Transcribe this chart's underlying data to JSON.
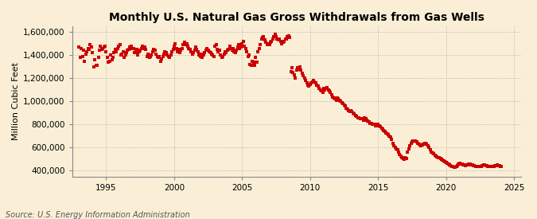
{
  "title": "Monthly U.S. Natural Gas Gross Withdrawals from Gas Wells",
  "ylabel": "Million Cubic Feet",
  "source": "Source: U.S. Energy Information Administration",
  "background_color": "#faefd6",
  "dot_color": "#cc0000",
  "dot_size": 6,
  "ylim": [
    350000,
    1650000
  ],
  "yticks": [
    400000,
    600000,
    800000,
    1000000,
    1200000,
    1400000,
    1600000
  ],
  "ytick_labels": [
    "400,000",
    "600,000",
    "800,000",
    "1,000,000",
    "1,200,000",
    "1,400,000",
    "1,600,000"
  ],
  "xticks": [
    1995,
    2000,
    2005,
    2010,
    2015,
    2020,
    2025
  ],
  "xlim_start": 1992.5,
  "xlim_end": 2025.5,
  "data": [
    [
      1993.0,
      1470000
    ],
    [
      1993.08,
      1380000
    ],
    [
      1993.17,
      1460000
    ],
    [
      1993.25,
      1390000
    ],
    [
      1993.33,
      1440000
    ],
    [
      1993.42,
      1350000
    ],
    [
      1993.5,
      1410000
    ],
    [
      1993.58,
      1430000
    ],
    [
      1993.67,
      1460000
    ],
    [
      1993.75,
      1450000
    ],
    [
      1993.83,
      1490000
    ],
    [
      1993.92,
      1470000
    ],
    [
      1994.0,
      1420000
    ],
    [
      1994.08,
      1300000
    ],
    [
      1994.17,
      1360000
    ],
    [
      1994.25,
      1310000
    ],
    [
      1994.33,
      1310000
    ],
    [
      1994.42,
      1380000
    ],
    [
      1994.5,
      1440000
    ],
    [
      1994.58,
      1480000
    ],
    [
      1994.67,
      1450000
    ],
    [
      1994.75,
      1460000
    ],
    [
      1994.83,
      1470000
    ],
    [
      1994.92,
      1480000
    ],
    [
      1995.0,
      1430000
    ],
    [
      1995.08,
      1380000
    ],
    [
      1995.17,
      1340000
    ],
    [
      1995.25,
      1350000
    ],
    [
      1995.33,
      1400000
    ],
    [
      1995.42,
      1360000
    ],
    [
      1995.5,
      1380000
    ],
    [
      1995.58,
      1420000
    ],
    [
      1995.67,
      1450000
    ],
    [
      1995.75,
      1430000
    ],
    [
      1995.83,
      1460000
    ],
    [
      1995.92,
      1480000
    ],
    [
      1996.0,
      1490000
    ],
    [
      1996.08,
      1400000
    ],
    [
      1996.17,
      1410000
    ],
    [
      1996.25,
      1430000
    ],
    [
      1996.33,
      1380000
    ],
    [
      1996.42,
      1400000
    ],
    [
      1996.5,
      1420000
    ],
    [
      1996.58,
      1440000
    ],
    [
      1996.67,
      1450000
    ],
    [
      1996.75,
      1470000
    ],
    [
      1996.83,
      1480000
    ],
    [
      1996.92,
      1460000
    ],
    [
      1997.0,
      1460000
    ],
    [
      1997.08,
      1420000
    ],
    [
      1997.17,
      1430000
    ],
    [
      1997.25,
      1450000
    ],
    [
      1997.33,
      1400000
    ],
    [
      1997.42,
      1430000
    ],
    [
      1997.5,
      1440000
    ],
    [
      1997.58,
      1460000
    ],
    [
      1997.67,
      1480000
    ],
    [
      1997.75,
      1460000
    ],
    [
      1997.83,
      1470000
    ],
    [
      1997.92,
      1450000
    ],
    [
      1998.0,
      1390000
    ],
    [
      1998.08,
      1410000
    ],
    [
      1998.17,
      1380000
    ],
    [
      1998.25,
      1390000
    ],
    [
      1998.33,
      1400000
    ],
    [
      1998.42,
      1430000
    ],
    [
      1998.5,
      1450000
    ],
    [
      1998.58,
      1440000
    ],
    [
      1998.67,
      1410000
    ],
    [
      1998.75,
      1390000
    ],
    [
      1998.83,
      1380000
    ],
    [
      1998.92,
      1390000
    ],
    [
      1999.0,
      1350000
    ],
    [
      1999.08,
      1370000
    ],
    [
      1999.17,
      1390000
    ],
    [
      1999.25,
      1410000
    ],
    [
      1999.33,
      1430000
    ],
    [
      1999.42,
      1420000
    ],
    [
      1999.5,
      1400000
    ],
    [
      1999.58,
      1390000
    ],
    [
      1999.67,
      1380000
    ],
    [
      1999.75,
      1400000
    ],
    [
      1999.83,
      1430000
    ],
    [
      1999.92,
      1450000
    ],
    [
      2000.0,
      1480000
    ],
    [
      2000.08,
      1500000
    ],
    [
      2000.17,
      1460000
    ],
    [
      2000.25,
      1430000
    ],
    [
      2000.33,
      1450000
    ],
    [
      2000.42,
      1420000
    ],
    [
      2000.5,
      1440000
    ],
    [
      2000.58,
      1460000
    ],
    [
      2000.67,
      1490000
    ],
    [
      2000.75,
      1510000
    ],
    [
      2000.83,
      1490000
    ],
    [
      2000.92,
      1500000
    ],
    [
      2001.0,
      1480000
    ],
    [
      2001.08,
      1460000
    ],
    [
      2001.17,
      1450000
    ],
    [
      2001.25,
      1430000
    ],
    [
      2001.33,
      1410000
    ],
    [
      2001.42,
      1420000
    ],
    [
      2001.5,
      1440000
    ],
    [
      2001.58,
      1470000
    ],
    [
      2001.67,
      1450000
    ],
    [
      2001.75,
      1430000
    ],
    [
      2001.83,
      1400000
    ],
    [
      2001.92,
      1390000
    ],
    [
      2002.0,
      1410000
    ],
    [
      2002.08,
      1380000
    ],
    [
      2002.17,
      1400000
    ],
    [
      2002.25,
      1420000
    ],
    [
      2002.33,
      1440000
    ],
    [
      2002.42,
      1460000
    ],
    [
      2002.5,
      1440000
    ],
    [
      2002.58,
      1430000
    ],
    [
      2002.67,
      1420000
    ],
    [
      2002.75,
      1410000
    ],
    [
      2002.83,
      1400000
    ],
    [
      2002.92,
      1390000
    ],
    [
      2003.0,
      1480000
    ],
    [
      2003.08,
      1490000
    ],
    [
      2003.17,
      1450000
    ],
    [
      2003.25,
      1430000
    ],
    [
      2003.33,
      1440000
    ],
    [
      2003.42,
      1400000
    ],
    [
      2003.5,
      1380000
    ],
    [
      2003.58,
      1390000
    ],
    [
      2003.67,
      1410000
    ],
    [
      2003.75,
      1430000
    ],
    [
      2003.83,
      1420000
    ],
    [
      2003.92,
      1440000
    ],
    [
      2004.0,
      1450000
    ],
    [
      2004.08,
      1480000
    ],
    [
      2004.17,
      1460000
    ],
    [
      2004.25,
      1440000
    ],
    [
      2004.33,
      1460000
    ],
    [
      2004.42,
      1430000
    ],
    [
      2004.5,
      1420000
    ],
    [
      2004.58,
      1440000
    ],
    [
      2004.67,
      1470000
    ],
    [
      2004.75,
      1490000
    ],
    [
      2004.83,
      1460000
    ],
    [
      2004.92,
      1470000
    ],
    [
      2005.0,
      1500000
    ],
    [
      2005.08,
      1520000
    ],
    [
      2005.17,
      1480000
    ],
    [
      2005.25,
      1460000
    ],
    [
      2005.33,
      1430000
    ],
    [
      2005.42,
      1390000
    ],
    [
      2005.5,
      1400000
    ],
    [
      2005.58,
      1320000
    ],
    [
      2005.67,
      1310000
    ],
    [
      2005.75,
      1350000
    ],
    [
      2005.83,
      1340000
    ],
    [
      2005.92,
      1310000
    ],
    [
      2006.0,
      1380000
    ],
    [
      2006.08,
      1340000
    ],
    [
      2006.17,
      1430000
    ],
    [
      2006.25,
      1460000
    ],
    [
      2006.33,
      1490000
    ],
    [
      2006.42,
      1540000
    ],
    [
      2006.5,
      1550000
    ],
    [
      2006.58,
      1560000
    ],
    [
      2006.67,
      1530000
    ],
    [
      2006.75,
      1510000
    ],
    [
      2006.83,
      1490000
    ],
    [
      2006.92,
      1500000
    ],
    [
      2007.0,
      1490000
    ],
    [
      2007.08,
      1510000
    ],
    [
      2007.17,
      1520000
    ],
    [
      2007.25,
      1540000
    ],
    [
      2007.33,
      1560000
    ],
    [
      2007.42,
      1580000
    ],
    [
      2007.5,
      1560000
    ],
    [
      2007.58,
      1540000
    ],
    [
      2007.67,
      1530000
    ],
    [
      2007.75,
      1540000
    ],
    [
      2007.83,
      1520000
    ],
    [
      2007.92,
      1500000
    ],
    [
      2008.0,
      1510000
    ],
    [
      2008.08,
      1520000
    ],
    [
      2008.17,
      1540000
    ],
    [
      2008.25,
      1540000
    ],
    [
      2008.33,
      1560000
    ],
    [
      2008.42,
      1570000
    ],
    [
      2008.5,
      1550000
    ],
    [
      2008.58,
      1260000
    ],
    [
      2008.67,
      1290000
    ],
    [
      2008.75,
      1250000
    ],
    [
      2008.83,
      1230000
    ],
    [
      2008.92,
      1200000
    ],
    [
      2009.0,
      1270000
    ],
    [
      2009.08,
      1290000
    ],
    [
      2009.17,
      1280000
    ],
    [
      2009.25,
      1300000
    ],
    [
      2009.33,
      1270000
    ],
    [
      2009.42,
      1240000
    ],
    [
      2009.5,
      1220000
    ],
    [
      2009.58,
      1200000
    ],
    [
      2009.67,
      1180000
    ],
    [
      2009.75,
      1160000
    ],
    [
      2009.83,
      1140000
    ],
    [
      2009.92,
      1130000
    ],
    [
      2010.0,
      1150000
    ],
    [
      2010.08,
      1160000
    ],
    [
      2010.17,
      1170000
    ],
    [
      2010.25,
      1180000
    ],
    [
      2010.33,
      1170000
    ],
    [
      2010.42,
      1160000
    ],
    [
      2010.5,
      1140000
    ],
    [
      2010.58,
      1130000
    ],
    [
      2010.67,
      1110000
    ],
    [
      2010.75,
      1100000
    ],
    [
      2010.83,
      1090000
    ],
    [
      2010.92,
      1080000
    ],
    [
      2011.0,
      1110000
    ],
    [
      2011.08,
      1100000
    ],
    [
      2011.17,
      1110000
    ],
    [
      2011.25,
      1120000
    ],
    [
      2011.33,
      1100000
    ],
    [
      2011.42,
      1090000
    ],
    [
      2011.5,
      1080000
    ],
    [
      2011.58,
      1060000
    ],
    [
      2011.67,
      1040000
    ],
    [
      2011.75,
      1030000
    ],
    [
      2011.83,
      1020000
    ],
    [
      2011.92,
      1010000
    ],
    [
      2012.0,
      1030000
    ],
    [
      2012.08,
      1020000
    ],
    [
      2012.17,
      1010000
    ],
    [
      2012.25,
      1000000
    ],
    [
      2012.33,
      990000
    ],
    [
      2012.42,
      980000
    ],
    [
      2012.5,
      970000
    ],
    [
      2012.58,
      960000
    ],
    [
      2012.67,
      940000
    ],
    [
      2012.75,
      930000
    ],
    [
      2012.83,
      920000
    ],
    [
      2012.92,
      910000
    ],
    [
      2013.0,
      920000
    ],
    [
      2013.08,
      910000
    ],
    [
      2013.17,
      900000
    ],
    [
      2013.25,
      890000
    ],
    [
      2013.33,
      880000
    ],
    [
      2013.42,
      870000
    ],
    [
      2013.5,
      860000
    ],
    [
      2013.58,
      860000
    ],
    [
      2013.67,
      850000
    ],
    [
      2013.75,
      850000
    ],
    [
      2013.83,
      850000
    ],
    [
      2013.92,
      840000
    ],
    [
      2014.0,
      860000
    ],
    [
      2014.08,
      850000
    ],
    [
      2014.17,
      840000
    ],
    [
      2014.25,
      830000
    ],
    [
      2014.33,
      820000
    ],
    [
      2014.42,
      810000
    ],
    [
      2014.5,
      810000
    ],
    [
      2014.58,
      800000
    ],
    [
      2014.67,
      800000
    ],
    [
      2014.75,
      800000
    ],
    [
      2014.83,
      790000
    ],
    [
      2014.92,
      790000
    ],
    [
      2015.0,
      800000
    ],
    [
      2015.08,
      790000
    ],
    [
      2015.17,
      780000
    ],
    [
      2015.25,
      770000
    ],
    [
      2015.33,
      760000
    ],
    [
      2015.42,
      750000
    ],
    [
      2015.5,
      740000
    ],
    [
      2015.58,
      730000
    ],
    [
      2015.67,
      720000
    ],
    [
      2015.75,
      710000
    ],
    [
      2015.83,
      700000
    ],
    [
      2015.92,
      690000
    ],
    [
      2016.0,
      670000
    ],
    [
      2016.08,
      640000
    ],
    [
      2016.17,
      620000
    ],
    [
      2016.25,
      600000
    ],
    [
      2016.33,
      590000
    ],
    [
      2016.42,
      580000
    ],
    [
      2016.5,
      560000
    ],
    [
      2016.58,
      540000
    ],
    [
      2016.67,
      525000
    ],
    [
      2016.75,
      510000
    ],
    [
      2016.83,
      505000
    ],
    [
      2016.92,
      500000
    ],
    [
      2017.0,
      510000
    ],
    [
      2017.08,
      505000
    ],
    [
      2017.17,
      560000
    ],
    [
      2017.25,
      590000
    ],
    [
      2017.33,
      615000
    ],
    [
      2017.42,
      640000
    ],
    [
      2017.5,
      650000
    ],
    [
      2017.58,
      655000
    ],
    [
      2017.67,
      660000
    ],
    [
      2017.75,
      655000
    ],
    [
      2017.83,
      650000
    ],
    [
      2017.92,
      640000
    ],
    [
      2018.0,
      630000
    ],
    [
      2018.08,
      625000
    ],
    [
      2018.17,
      620000
    ],
    [
      2018.25,
      625000
    ],
    [
      2018.33,
      630000
    ],
    [
      2018.42,
      635000
    ],
    [
      2018.5,
      640000
    ],
    [
      2018.58,
      630000
    ],
    [
      2018.67,
      615000
    ],
    [
      2018.75,
      600000
    ],
    [
      2018.83,
      580000
    ],
    [
      2018.92,
      565000
    ],
    [
      2019.0,
      555000
    ],
    [
      2019.08,
      545000
    ],
    [
      2019.17,
      535000
    ],
    [
      2019.25,
      525000
    ],
    [
      2019.33,
      520000
    ],
    [
      2019.42,
      515000
    ],
    [
      2019.5,
      510000
    ],
    [
      2019.58,
      505000
    ],
    [
      2019.67,
      498000
    ],
    [
      2019.75,
      492000
    ],
    [
      2019.83,
      486000
    ],
    [
      2019.92,
      480000
    ],
    [
      2020.0,
      473000
    ],
    [
      2020.08,
      466000
    ],
    [
      2020.17,
      458000
    ],
    [
      2020.25,
      450000
    ],
    [
      2020.33,
      445000
    ],
    [
      2020.42,
      440000
    ],
    [
      2020.5,
      437000
    ],
    [
      2020.58,
      434000
    ],
    [
      2020.67,
      433000
    ],
    [
      2020.75,
      435000
    ],
    [
      2020.83,
      445000
    ],
    [
      2020.92,
      458000
    ],
    [
      2021.0,
      462000
    ],
    [
      2021.08,
      458000
    ],
    [
      2021.17,
      455000
    ],
    [
      2021.25,
      452000
    ],
    [
      2021.33,
      449000
    ],
    [
      2021.42,
      447000
    ],
    [
      2021.5,
      448000
    ],
    [
      2021.58,
      452000
    ],
    [
      2021.67,
      456000
    ],
    [
      2021.75,
      455000
    ],
    [
      2021.83,
      452000
    ],
    [
      2021.92,
      450000
    ],
    [
      2022.0,
      447000
    ],
    [
      2022.08,
      444000
    ],
    [
      2022.17,
      441000
    ],
    [
      2022.25,
      439000
    ],
    [
      2022.33,
      437000
    ],
    [
      2022.42,
      437000
    ],
    [
      2022.5,
      438000
    ],
    [
      2022.58,
      441000
    ],
    [
      2022.67,
      445000
    ],
    [
      2022.75,
      448000
    ],
    [
      2022.83,
      448000
    ],
    [
      2022.92,
      446000
    ],
    [
      2023.0,
      443000
    ],
    [
      2023.08,
      440000
    ],
    [
      2023.17,
      437000
    ],
    [
      2023.25,
      435000
    ],
    [
      2023.33,
      435000
    ],
    [
      2023.42,
      437000
    ],
    [
      2023.5,
      440000
    ],
    [
      2023.58,
      444000
    ],
    [
      2023.67,
      447000
    ],
    [
      2023.75,
      449000
    ],
    [
      2023.83,
      447000
    ],
    [
      2023.92,
      444000
    ],
    [
      2024.0,
      441000
    ],
    [
      2024.08,
      438000
    ]
  ]
}
